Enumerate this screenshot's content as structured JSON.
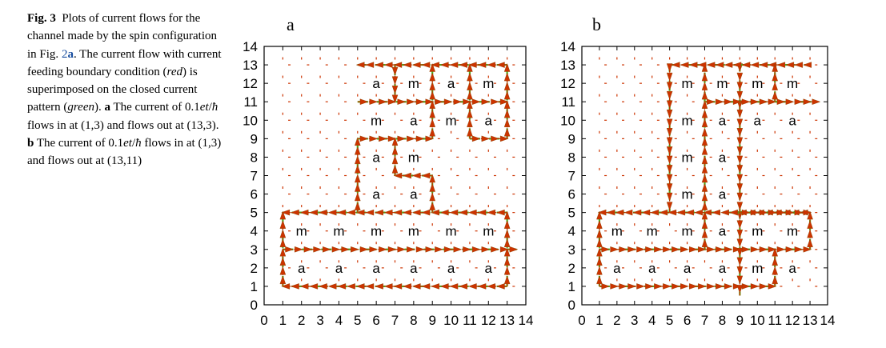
{
  "caption": {
    "fig_label": "Fig. 3",
    "text_1": "Plots of current flows for the channel made by the spin configuration in Fig.",
    "ref_fig": "2",
    "ref_panel": "a",
    "text_2": ". The current flow with current feeding boundary condition (",
    "red_word": "red",
    "text_3": ") is superimposed on the closed current pattern (",
    "green_word": "green",
    "text_4": ").",
    "label_a": "a",
    "text_5a": "The current of 0.1",
    "math_a": "et",
    "slash_a": "/",
    "hbar_a": "ħ",
    "text_5b": "flows in at (1,3) and flows out at (13,3).",
    "label_b": "b",
    "text_6a": "The current of 0.1",
    "math_b": "et",
    "slash_b": "/",
    "hbar_b": "ħ",
    "text_6b": "flows in at (1,3) and flows out at (13,11)"
  },
  "colors": {
    "red_flow": "#cc3300",
    "green_flow": "#44bb22",
    "frame": "#000000"
  },
  "chart_data": [
    {
      "type": "vector-field",
      "title": "a",
      "xlim": [
        0,
        14
      ],
      "ylim": [
        0,
        14
      ],
      "xticks": [
        0,
        1,
        2,
        3,
        4,
        5,
        6,
        7,
        8,
        9,
        10,
        11,
        12,
        13,
        14
      ],
      "yticks": [
        0,
        1,
        2,
        3,
        4,
        5,
        6,
        7,
        8,
        9,
        10,
        11,
        12,
        13,
        14
      ],
      "site_labels": [
        {
          "x": 6,
          "y": 12,
          "t": "a"
        },
        {
          "x": 8,
          "y": 12,
          "t": "m"
        },
        {
          "x": 10,
          "y": 12,
          "t": "a"
        },
        {
          "x": 12,
          "y": 12,
          "t": "m"
        },
        {
          "x": 6,
          "y": 10,
          "t": "m"
        },
        {
          "x": 8,
          "y": 10,
          "t": "a"
        },
        {
          "x": 10,
          "y": 10,
          "t": "m"
        },
        {
          "x": 12,
          "y": 10,
          "t": "a"
        },
        {
          "x": 6,
          "y": 8,
          "t": "a"
        },
        {
          "x": 8,
          "y": 8,
          "t": "m"
        },
        {
          "x": 6,
          "y": 6,
          "t": "a"
        },
        {
          "x": 8,
          "y": 6,
          "t": "a"
        },
        {
          "x": 2,
          "y": 4,
          "t": "m"
        },
        {
          "x": 4,
          "y": 4,
          "t": "m"
        },
        {
          "x": 6,
          "y": 4,
          "t": "m"
        },
        {
          "x": 8,
          "y": 4,
          "t": "m"
        },
        {
          "x": 10,
          "y": 4,
          "t": "m"
        },
        {
          "x": 12,
          "y": 4,
          "t": "m"
        },
        {
          "x": 2,
          "y": 2,
          "t": "a"
        },
        {
          "x": 4,
          "y": 2,
          "t": "a"
        },
        {
          "x": 6,
          "y": 2,
          "t": "a"
        },
        {
          "x": 8,
          "y": 2,
          "t": "a"
        },
        {
          "x": 10,
          "y": 2,
          "t": "a"
        },
        {
          "x": 12,
          "y": 2,
          "t": "a"
        }
      ],
      "paths": [
        {
          "pts": [
            [
              1,
              3
            ],
            [
              13.5,
              3
            ]
          ],
          "heads": "right"
        },
        {
          "pts": [
            [
              13,
              1
            ],
            [
              1,
              1
            ]
          ],
          "heads": "left"
        },
        {
          "pts": [
            [
              1,
              1
            ],
            [
              1,
              5
            ]
          ],
          "heads": "up"
        },
        {
          "pts": [
            [
              13,
              5
            ],
            [
              1,
              5
            ]
          ],
          "heads": "left"
        },
        {
          "pts": [
            [
              13,
              1
            ],
            [
              13,
              5
            ]
          ],
          "heads": "up"
        },
        {
          "pts": [
            [
              9,
              5
            ],
            [
              9,
              7
            ]
          ],
          "heads": "up"
        },
        {
          "pts": [
            [
              9,
              7
            ],
            [
              7,
              7
            ]
          ],
          "heads": "left"
        },
        {
          "pts": [
            [
              7,
              7
            ],
            [
              7,
              9
            ]
          ],
          "heads": "up"
        },
        {
          "pts": [
            [
              5,
              5
            ],
            [
              5,
              9
            ]
          ],
          "heads": "up"
        },
        {
          "pts": [
            [
              5,
              9
            ],
            [
              9,
              9
            ]
          ],
          "heads": "right"
        },
        {
          "pts": [
            [
              5,
              11
            ],
            [
              13,
              11
            ]
          ],
          "heads": "right"
        },
        {
          "pts": [
            [
              9,
              9
            ],
            [
              9,
              13
            ]
          ],
          "heads": "up"
        },
        {
          "pts": [
            [
              13,
              13
            ],
            [
              5,
              13
            ]
          ],
          "heads": "left"
        },
        {
          "pts": [
            [
              7,
              13
            ],
            [
              7,
              11
            ]
          ],
          "heads": "down"
        },
        {
          "pts": [
            [
              11,
              9
            ],
            [
              11,
              13
            ]
          ],
          "heads": "up"
        },
        {
          "pts": [
            [
              13,
              9
            ],
            [
              13,
              13
            ]
          ],
          "heads": "up"
        },
        {
          "pts": [
            [
              11,
              9
            ],
            [
              13,
              9
            ]
          ],
          "heads": "right"
        }
      ]
    },
    {
      "type": "vector-field",
      "title": "b",
      "xlim": [
        0,
        14
      ],
      "ylim": [
        0,
        14
      ],
      "xticks": [
        0,
        1,
        2,
        3,
        4,
        5,
        6,
        7,
        8,
        9,
        10,
        11,
        12,
        13,
        14
      ],
      "yticks": [
        0,
        1,
        2,
        3,
        4,
        5,
        6,
        7,
        8,
        9,
        10,
        11,
        12,
        13,
        14
      ],
      "site_labels": [
        {
          "x": 6,
          "y": 12,
          "t": "m"
        },
        {
          "x": 8,
          "y": 12,
          "t": "m"
        },
        {
          "x": 10,
          "y": 12,
          "t": "m"
        },
        {
          "x": 12,
          "y": 12,
          "t": "m"
        },
        {
          "x": 6,
          "y": 10,
          "t": "m"
        },
        {
          "x": 8,
          "y": 10,
          "t": "a"
        },
        {
          "x": 10,
          "y": 10,
          "t": "a"
        },
        {
          "x": 12,
          "y": 10,
          "t": "a"
        },
        {
          "x": 6,
          "y": 8,
          "t": "m"
        },
        {
          "x": 8,
          "y": 8,
          "t": "a"
        },
        {
          "x": 6,
          "y": 6,
          "t": "m"
        },
        {
          "x": 8,
          "y": 6,
          "t": "a"
        },
        {
          "x": 2,
          "y": 4,
          "t": "m"
        },
        {
          "x": 4,
          "y": 4,
          "t": "m"
        },
        {
          "x": 6,
          "y": 4,
          "t": "m"
        },
        {
          "x": 8,
          "y": 4,
          "t": "a"
        },
        {
          "x": 10,
          "y": 4,
          "t": "m"
        },
        {
          "x": 12,
          "y": 4,
          "t": "m"
        },
        {
          "x": 2,
          "y": 2,
          "t": "a"
        },
        {
          "x": 4,
          "y": 2,
          "t": "a"
        },
        {
          "x": 6,
          "y": 2,
          "t": "a"
        },
        {
          "x": 8,
          "y": 2,
          "t": "a"
        },
        {
          "x": 10,
          "y": 2,
          "t": "m"
        },
        {
          "x": 12,
          "y": 2,
          "t": "a"
        }
      ],
      "paths": [
        {
          "pts": [
            [
              1,
              3
            ],
            [
              9,
              3
            ]
          ],
          "heads": "right"
        },
        {
          "pts": [
            [
              9,
              3
            ],
            [
              13,
              3
            ]
          ],
          "heads": "right"
        },
        {
          "pts": [
            [
              1,
              1
            ],
            [
              11,
              1
            ]
          ],
          "heads": "right"
        },
        {
          "pts": [
            [
              11,
              1
            ],
            [
              11,
              3
            ]
          ],
          "heads": "up"
        },
        {
          "pts": [
            [
              9,
              0.5
            ],
            [
              9,
              13
            ]
          ],
          "heads": "down"
        },
        {
          "pts": [
            [
              7,
              3
            ],
            [
              7,
              13
            ]
          ],
          "heads": "up"
        },
        {
          "pts": [
            [
              5,
              13
            ],
            [
              13,
              13
            ]
          ],
          "heads": "left"
        },
        {
          "pts": [
            [
              5,
              5
            ],
            [
              5,
              13
            ]
          ],
          "heads": "down"
        },
        {
          "pts": [
            [
              13,
              5
            ],
            [
              1,
              5
            ]
          ],
          "heads": "left"
        },
        {
          "pts": [
            [
              13,
              3
            ],
            [
              13,
              5
            ]
          ],
          "heads": "up"
        },
        {
          "pts": [
            [
              1,
              1
            ],
            [
              1,
              5
            ]
          ],
          "heads": "up"
        },
        {
          "pts": [
            [
              7,
              11
            ],
            [
              13.5,
              11
            ]
          ],
          "heads": "right"
        },
        {
          "pts": [
            [
              11,
              11
            ],
            [
              11,
              13
            ]
          ],
          "heads": "up"
        },
        {
          "pts": [
            [
              9,
              5
            ],
            [
              13,
              5
            ]
          ],
          "heads": "right"
        }
      ]
    }
  ]
}
